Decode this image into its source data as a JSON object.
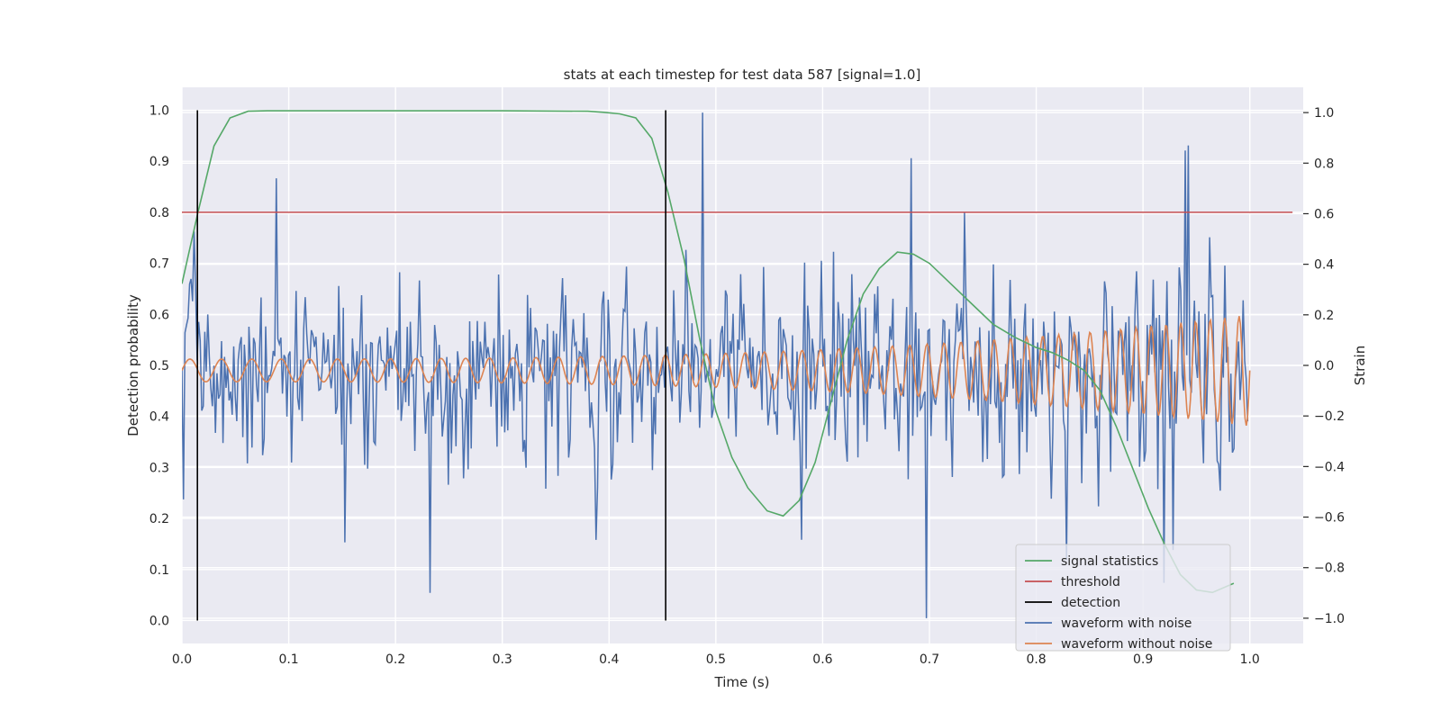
{
  "chart_data": {
    "type": "line",
    "title": "stats at each timestep for test data 587 [signal=1.0]",
    "xlabel": "Time (s)",
    "ylabel_left": "Detection probability",
    "ylabel_right": "Strain",
    "xlim": [
      0.0,
      1.05
    ],
    "ylim_left": [
      -0.045,
      1.045
    ],
    "ylim_right": [
      -1.1,
      1.1
    ],
    "grid": true,
    "legend_position": "lower-right",
    "x_ticks": [
      "0.0",
      "0.1",
      "0.2",
      "0.3",
      "0.4",
      "0.5",
      "0.6",
      "0.7",
      "0.8",
      "0.9",
      "1.0"
    ],
    "y_left_ticks": [
      "0.0",
      "0.1",
      "0.2",
      "0.3",
      "0.4",
      "0.5",
      "0.6",
      "0.7",
      "0.8",
      "0.9",
      "1.0"
    ],
    "y_right_ticks": [
      "−1.0",
      "−0.8",
      "−0.6",
      "−0.4",
      "−0.2",
      "0.0",
      "0.2",
      "0.4",
      "0.6",
      "0.8",
      "1.0"
    ],
    "threshold": 0.8,
    "threshold_x_range": [
      0.0,
      1.04
    ],
    "detections": [
      0.0145,
      0.453
    ],
    "signal_statistics": {
      "x": [
        0.0,
        0.015,
        0.03,
        0.045,
        0.062,
        0.08,
        0.1,
        0.2,
        0.3,
        0.38,
        0.395,
        0.41,
        0.425,
        0.44,
        0.455,
        0.47,
        0.485,
        0.5,
        0.515,
        0.53,
        0.548,
        0.563,
        0.578,
        0.593,
        0.608,
        0.623,
        0.638,
        0.653,
        0.67,
        0.685,
        0.7,
        0.72,
        0.74,
        0.76,
        0.78,
        0.8,
        0.815,
        0.83,
        0.845,
        0.86,
        0.875,
        0.89,
        0.905,
        0.92,
        0.935,
        0.95,
        0.965,
        0.985
      ],
      "values": [
        0.66,
        0.8,
        0.93,
        0.985,
        0.998,
        0.999,
        0.999,
        0.999,
        0.999,
        0.998,
        0.996,
        0.993,
        0.985,
        0.945,
        0.84,
        0.71,
        0.55,
        0.41,
        0.32,
        0.26,
        0.215,
        0.205,
        0.235,
        0.31,
        0.43,
        0.55,
        0.64,
        0.69,
        0.722,
        0.718,
        0.7,
        0.66,
        0.62,
        0.58,
        0.555,
        0.535,
        0.525,
        0.51,
        0.49,
        0.45,
        0.38,
        0.3,
        0.22,
        0.15,
        0.09,
        0.06,
        0.055,
        0.073
      ],
      "color": "#55a868"
    },
    "waveform_without_noise": {
      "description_free": true,
      "t_range": [
        0.0,
        1.0
      ],
      "amplitude_start": 0.045,
      "amplitude_end": 0.22,
      "offset": -0.02,
      "freq_start": 33,
      "freq_end": 75,
      "color": "#dd8452"
    },
    "waveform_with_noise": {
      "t_range": [
        0.0,
        0.998
      ],
      "noise_sigma": 0.2,
      "extreme_points": [
        {
          "t": 0.002,
          "v": -0.53
        },
        {
          "t": 0.012,
          "v": 0.53
        },
        {
          "t": 0.088,
          "v": 0.74
        },
        {
          "t": 0.232,
          "v": -0.9
        },
        {
          "t": 0.488,
          "v": 1.0
        },
        {
          "t": 0.683,
          "v": 0.82
        },
        {
          "t": 0.697,
          "v": -1.0
        },
        {
          "t": 0.94,
          "v": 0.85
        },
        {
          "t": 0.942,
          "v": 0.87
        },
        {
          "t": 0.152,
          "v": -0.7
        },
        {
          "t": 0.388,
          "v": -0.69
        },
        {
          "t": 0.58,
          "v": -0.69
        },
        {
          "t": 0.828,
          "v": -0.77
        },
        {
          "t": 0.92,
          "v": -0.86
        }
      ],
      "color": "#4c72b0"
    },
    "legend": [
      {
        "label": "signal statistics",
        "color": "#55a868"
      },
      {
        "label": "threshold",
        "color": "#c44e52"
      },
      {
        "label": "detection",
        "color": "#000000"
      },
      {
        "label": "waveform with noise",
        "color": "#4c72b0"
      },
      {
        "label": "waveform without noise",
        "color": "#dd8452"
      }
    ]
  },
  "colors": {
    "plot_background": "#eaeaf2",
    "grid": "#ffffff",
    "text": "#262626"
  }
}
